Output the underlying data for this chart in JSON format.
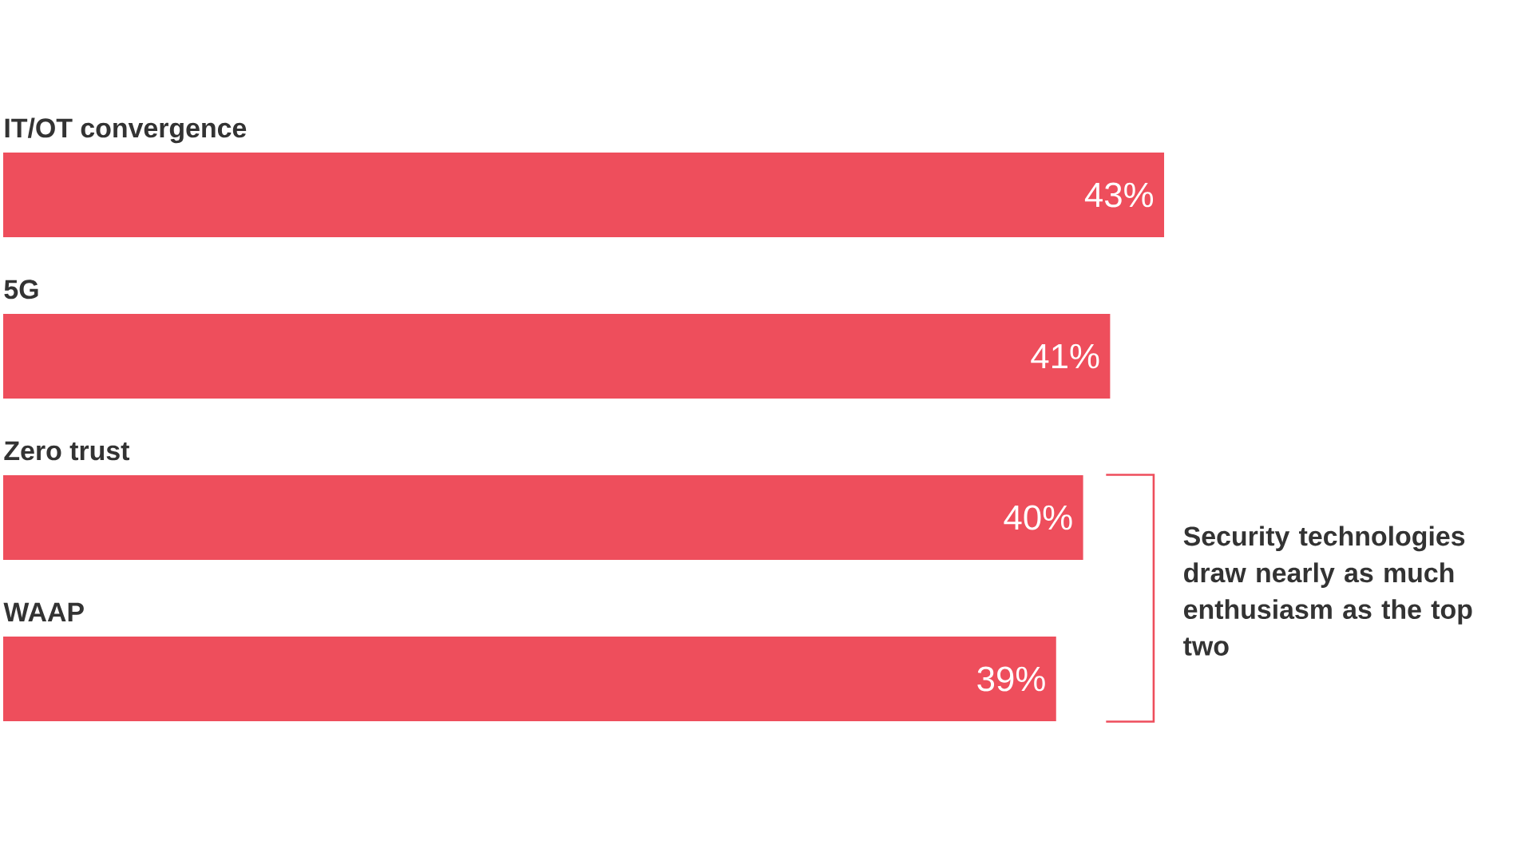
{
  "chart_data": {
    "type": "bar",
    "orientation": "horizontal",
    "categories": [
      "IT/OT convergence",
      "5G",
      "Zero trust",
      "WAAP"
    ],
    "values": [
      43,
      41,
      40,
      39
    ],
    "value_labels": [
      "43%",
      "41%",
      "40%",
      "39%"
    ],
    "color": "#ee4e5c",
    "annotations": [
      "Security technologies draw nearly as much enthusiasm as the top two"
    ]
  }
}
